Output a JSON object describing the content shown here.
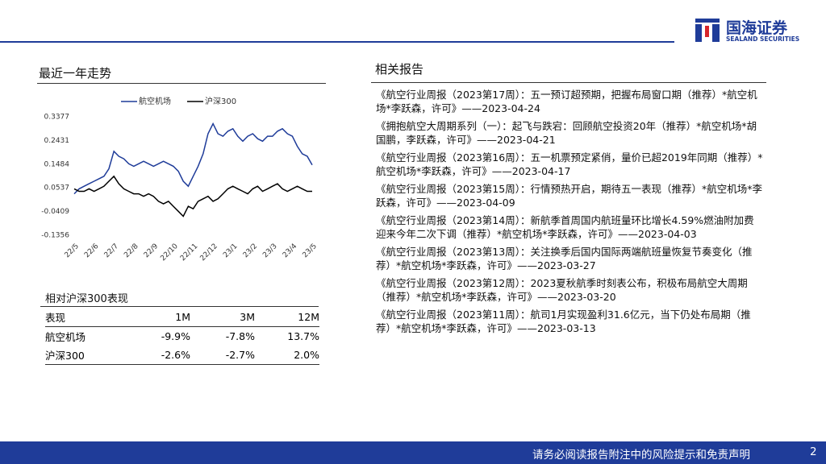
{
  "header": {
    "logo": "国海证券",
    "logo_sub": "SEALAND SECURITIES"
  },
  "left_title": "最近一年走势",
  "chart_data": {
    "type": "line",
    "categories": [
      "22/5",
      null,
      null,
      null,
      "22/6",
      null,
      null,
      null,
      "22/7",
      null,
      null,
      null,
      "22/8",
      null,
      null,
      null,
      "22/9",
      null,
      null,
      null,
      "22/10",
      null,
      null,
      null,
      "22/11",
      null,
      null,
      null,
      "22/12",
      null,
      null,
      null,
      "23/1",
      null,
      null,
      null,
      "23/2",
      null,
      null,
      null,
      "23/3",
      null,
      null,
      null,
      "23/4",
      null,
      null,
      null,
      "23/5"
    ],
    "series": [
      {
        "name": "航空机场",
        "color": "#1f3c99",
        "values": [
          0.03,
          0.05,
          0.06,
          0.07,
          0.08,
          0.09,
          0.1,
          0.13,
          0.2,
          0.18,
          0.17,
          0.15,
          0.14,
          0.15,
          0.16,
          0.15,
          0.14,
          0.15,
          0.16,
          0.15,
          0.14,
          0.12,
          0.08,
          0.06,
          0.1,
          0.14,
          0.19,
          0.27,
          0.31,
          0.27,
          0.26,
          0.28,
          0.29,
          0.26,
          0.24,
          0.26,
          0.27,
          0.25,
          0.24,
          0.26,
          0.26,
          0.28,
          0.29,
          0.27,
          0.26,
          0.22,
          0.19,
          0.18,
          0.145
        ]
      },
      {
        "name": "沪深300",
        "color": "#000000",
        "values": [
          0.05,
          0.04,
          0.04,
          0.05,
          0.04,
          0.05,
          0.06,
          0.08,
          0.1,
          0.07,
          0.05,
          0.04,
          0.03,
          0.03,
          0.02,
          0.03,
          0.02,
          0.0,
          -0.01,
          0.0,
          -0.02,
          -0.04,
          -0.06,
          -0.02,
          -0.03,
          0.0,
          0.01,
          0.02,
          0.0,
          0.01,
          0.03,
          0.05,
          0.06,
          0.05,
          0.04,
          0.03,
          0.05,
          0.06,
          0.04,
          0.05,
          0.06,
          0.07,
          0.05,
          0.04,
          0.05,
          0.06,
          0.05,
          0.04,
          0.04
        ]
      }
    ],
    "ylim": [
      -0.1356,
      0.3377
    ],
    "yticks": [
      0.3377,
      0.2431,
      0.1484,
      0.0537,
      -0.0409,
      -0.1356
    ],
    "legend": "top",
    "grid": false
  },
  "table": {
    "title": "相对沪深300表现",
    "header": [
      "表现",
      "1M",
      "3M",
      "12M"
    ],
    "rows": [
      [
        "航空机场",
        "-9.9%",
        "-7.8%",
        "13.7%"
      ],
      [
        "沪深300",
        "-2.6%",
        "-2.7%",
        "2.0%"
      ]
    ]
  },
  "reports": {
    "title": "相关报告",
    "items": [
      "《航空行业周报（2023第17周）：五一预订超预期，把握布局窗口期（推荐）*航空机场*李跃森，许可》——2023-04-24",
      "《拥抱航空大周期系列（一）：起飞与跌宕：回顾航空投资20年（推荐）*航空机场*胡国鹏，李跃森，许可》——2023-04-21",
      "《航空行业周报（2023第16周）：五一机票预定紧俏，量价已超2019年同期（推荐）*航空机场*李跃森，许可》——2023-04-17",
      "《航空行业周报（2023第15周）：行情预热开启，期待五一表现（推荐）*航空机场*李跃森，许可》——2023-04-09",
      "《航空行业周报（2023第14周）：新航季首周国内航班量环比增长4.59%燃油附加费迎来今年二次下调（推荐）*航空机场*李跃森，许可》——2023-04-03",
      "《航空行业周报（2023第13周）：关注换季后国内国际两端航班量恢复节奏变化（推荐）*航空机场*李跃森，许可》——2023-03-27",
      "《航空行业周报（2023第12周）：2023夏秋航季时刻表公布，积极布局航空大周期（推荐）*航空机场*李跃森，许可》——2023-03-20",
      "《航空行业周报（2023第11周）：航司1月实现盈利31.6亿元，当下仍处布局期（推荐）*航空机场*李跃森，许可》——2023-03-13"
    ]
  },
  "footer": {
    "disclaimer": "请务必阅读报告附注中的风险提示和免责声明",
    "page": "2"
  }
}
